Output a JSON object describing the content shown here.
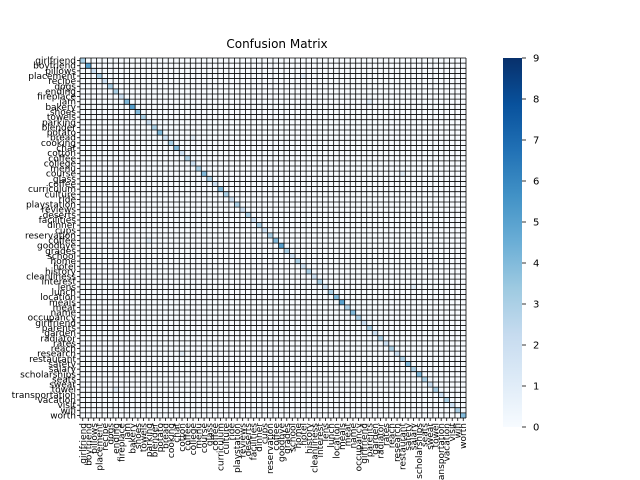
{
  "chart_data": {
    "type": "heatmap",
    "title": "Confusion Matrix",
    "xlabel": "",
    "ylabel": "",
    "colormap": "Blues",
    "colorbar": {
      "min": 0,
      "max": 9,
      "ticks": [
        0,
        1,
        2,
        3,
        4,
        5,
        6,
        7,
        8,
        9
      ]
    },
    "grid_color": "#000000",
    "colors": {
      "low": "#f7fbff",
      "high": "#08306b"
    },
    "row_labels": [
      "girlfriend",
      "boyfriend",
      "pillows",
      "placement",
      "recipe",
      "dogs",
      "ending",
      "fireplace",
      "jam",
      "bakery",
      "shoes",
      "towels",
      "parking",
      "blender",
      "potato",
      "bread",
      "cooking",
      "chat",
      "cotton",
      "coffee",
      "college",
      "menu",
      "course",
      "glass",
      "coffee",
      "curriculum",
      "culture",
      "ride",
      "playstation",
      "reviews",
      "deserts",
      "facilities",
      "dinner",
      "cups",
      "reservation",
      "coffee",
      "goodbye",
      "grades",
      "school",
      "home",
      "hotel",
      "history",
      "cleanliness",
      "interest",
      "lens",
      "lunch",
      "location",
      "meals",
      "meat",
      "name",
      "occupancy",
      "girlfriend",
      "parents",
      "garden",
      "radiator",
      "rates",
      "reach",
      "research",
      "restaurant",
      "safety",
      "salary",
      "scholarships",
      "seats",
      "swear",
      "towel",
      "transportation",
      "vacation",
      "visit",
      "wifi",
      "worth"
    ],
    "col_labels": [
      "girlfriend",
      "boyfriend",
      "pillows",
      "placement",
      "recipe",
      "dogs",
      "ending",
      "fireplace",
      "jam",
      "bakery",
      "shoes",
      "towels",
      "parking",
      "blender",
      "potato",
      "bread",
      "cooking",
      "chat",
      "cotton",
      "coffee",
      "college",
      "menu",
      "course",
      "glass",
      "coffee",
      "curriculum",
      "culture",
      "ride",
      "playstation",
      "reviews",
      "deserts",
      "facilities",
      "dinner",
      "cups",
      "reservation",
      "coffee",
      "goodbye",
      "grades",
      "school",
      "home",
      "hotel",
      "history",
      "cleanliness",
      "interest",
      "lens",
      "lunch",
      "location",
      "meals",
      "meat",
      "name",
      "occupancy",
      "girlfriend",
      "parents",
      "garden",
      "radiator",
      "rates",
      "reach",
      "research",
      "restaurant",
      "safety",
      "salary",
      "scholarships",
      "seats",
      "swear",
      "towel",
      "transportation",
      "vacation",
      "visit",
      "wifi",
      "worth"
    ],
    "cells": [
      {
        "r": 0,
        "c": 0,
        "v": 3
      },
      {
        "r": 1,
        "c": 1,
        "v": 5
      },
      {
        "r": 2,
        "c": 2,
        "v": 2
      },
      {
        "r": 3,
        "c": 3,
        "v": 3
      },
      {
        "r": 4,
        "c": 4,
        "v": 2
      },
      {
        "r": 5,
        "c": 5,
        "v": 3
      },
      {
        "r": 6,
        "c": 6,
        "v": 3
      },
      {
        "r": 7,
        "c": 7,
        "v": 2
      },
      {
        "r": 8,
        "c": 8,
        "v": 4
      },
      {
        "r": 9,
        "c": 9,
        "v": 5
      },
      {
        "r": 10,
        "c": 10,
        "v": 4
      },
      {
        "r": 11,
        "c": 11,
        "v": 3
      },
      {
        "r": 12,
        "c": 12,
        "v": 2
      },
      {
        "r": 13,
        "c": 13,
        "v": 3
      },
      {
        "r": 14,
        "c": 14,
        "v": 4
      },
      {
        "r": 15,
        "c": 15,
        "v": 2
      },
      {
        "r": 16,
        "c": 16,
        "v": 3
      },
      {
        "r": 17,
        "c": 17,
        "v": 4
      },
      {
        "r": 18,
        "c": 18,
        "v": 2
      },
      {
        "r": 19,
        "c": 19,
        "v": 3
      },
      {
        "r": 20,
        "c": 20,
        "v": 2
      },
      {
        "r": 21,
        "c": 21,
        "v": 3
      },
      {
        "r": 22,
        "c": 22,
        "v": 4
      },
      {
        "r": 23,
        "c": 23,
        "v": 3
      },
      {
        "r": 24,
        "c": 24,
        "v": 2
      },
      {
        "r": 25,
        "c": 25,
        "v": 4
      },
      {
        "r": 26,
        "c": 26,
        "v": 3
      },
      {
        "r": 27,
        "c": 27,
        "v": 2
      },
      {
        "r": 28,
        "c": 28,
        "v": 3
      },
      {
        "r": 29,
        "c": 29,
        "v": 2
      },
      {
        "r": 30,
        "c": 30,
        "v": 3
      },
      {
        "r": 31,
        "c": 31,
        "v": 2
      },
      {
        "r": 32,
        "c": 32,
        "v": 3
      },
      {
        "r": 33,
        "c": 33,
        "v": 2
      },
      {
        "r": 34,
        "c": 34,
        "v": 3
      },
      {
        "r": 35,
        "c": 35,
        "v": 4
      },
      {
        "r": 36,
        "c": 36,
        "v": 5
      },
      {
        "r": 37,
        "c": 37,
        "v": 3
      },
      {
        "r": 38,
        "c": 38,
        "v": 2
      },
      {
        "r": 39,
        "c": 39,
        "v": 3
      },
      {
        "r": 40,
        "c": 40,
        "v": 2
      },
      {
        "r": 41,
        "c": 41,
        "v": 3
      },
      {
        "r": 42,
        "c": 42,
        "v": 2
      },
      {
        "r": 43,
        "c": 43,
        "v": 3
      },
      {
        "r": 44,
        "c": 44,
        "v": 2
      },
      {
        "r": 45,
        "c": 45,
        "v": 3
      },
      {
        "r": 46,
        "c": 46,
        "v": 4
      },
      {
        "r": 47,
        "c": 47,
        "v": 5
      },
      {
        "r": 48,
        "c": 48,
        "v": 3
      },
      {
        "r": 49,
        "c": 49,
        "v": 4
      },
      {
        "r": 50,
        "c": 50,
        "v": 3
      },
      {
        "r": 51,
        "c": 51,
        "v": 2
      },
      {
        "r": 52,
        "c": 52,
        "v": 3
      },
      {
        "r": 53,
        "c": 53,
        "v": 2
      },
      {
        "r": 54,
        "c": 54,
        "v": 3
      },
      {
        "r": 55,
        "c": 55,
        "v": 2
      },
      {
        "r": 56,
        "c": 56,
        "v": 3
      },
      {
        "r": 57,
        "c": 57,
        "v": 2
      },
      {
        "r": 58,
        "c": 58,
        "v": 3
      },
      {
        "r": 59,
        "c": 59,
        "v": 4
      },
      {
        "r": 60,
        "c": 60,
        "v": 3
      },
      {
        "r": 61,
        "c": 61,
        "v": 4
      },
      {
        "r": 62,
        "c": 62,
        "v": 3
      },
      {
        "r": 63,
        "c": 63,
        "v": 2
      },
      {
        "r": 64,
        "c": 64,
        "v": 3
      },
      {
        "r": 65,
        "c": 65,
        "v": 2
      },
      {
        "r": 66,
        "c": 66,
        "v": 3
      },
      {
        "r": 67,
        "c": 67,
        "v": 2
      },
      {
        "r": 68,
        "c": 68,
        "v": 3
      },
      {
        "r": 69,
        "c": 69,
        "v": 4
      },
      {
        "r": 3,
        "c": 40,
        "v": 1
      },
      {
        "r": 8,
        "c": 52,
        "v": 1
      },
      {
        "r": 15,
        "c": 20,
        "v": 1
      },
      {
        "r": 22,
        "c": 58,
        "v": 1
      },
      {
        "r": 35,
        "c": 12,
        "v": 1
      },
      {
        "r": 44,
        "c": 60,
        "v": 1
      },
      {
        "r": 57,
        "c": 18,
        "v": 1
      },
      {
        "r": 64,
        "c": 6,
        "v": 1
      }
    ]
  }
}
